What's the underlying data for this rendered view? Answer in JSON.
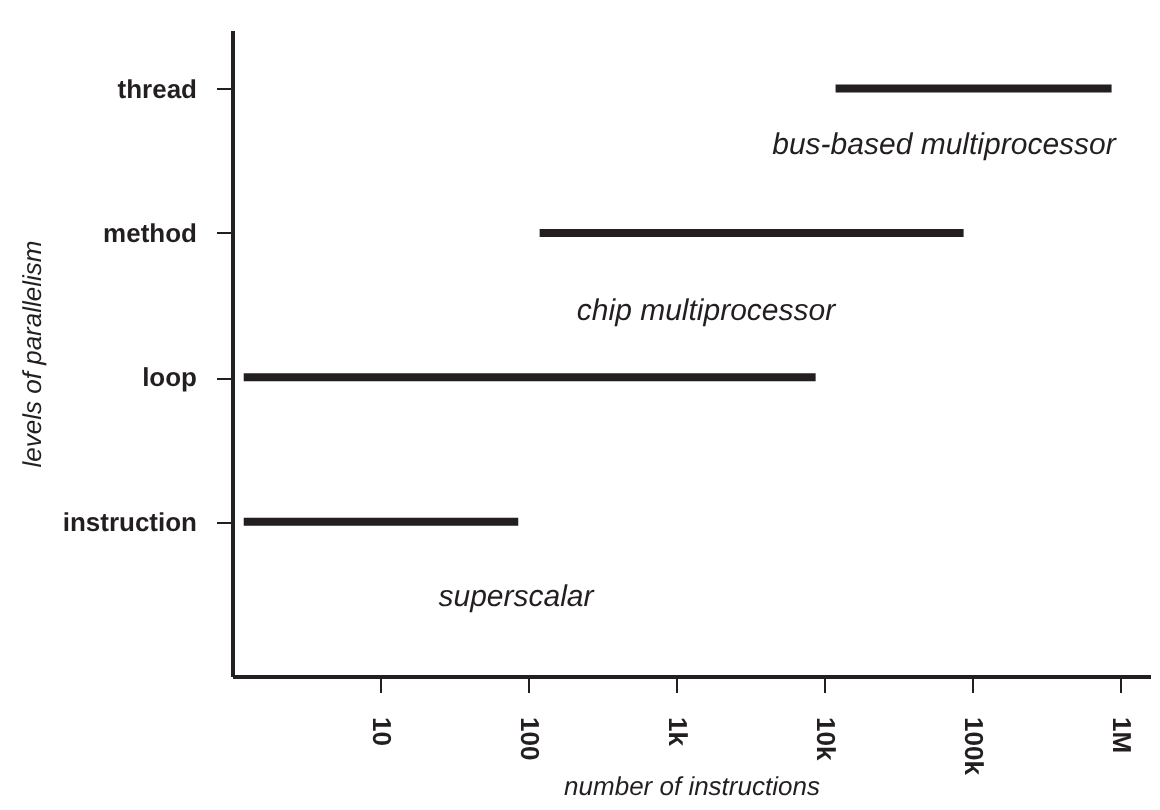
{
  "chart_data": {
    "type": "bar",
    "orientation": "horizontal",
    "log": "x",
    "categories": [
      "thread",
      "method",
      "loop",
      "instruction"
    ],
    "base": [
      12000,
      120,
      1.2,
      1.2
    ],
    "values": [
      868000,
      87880,
      8798.8,
      84.8
    ],
    "color": "#231f20",
    "xlim": [
      1,
      1600000
    ],
    "xticks": [
      10,
      100,
      {
        "value": 1000,
        "label": "1k"
      },
      {
        "value": 10000,
        "label": "10k"
      },
      {
        "value": 100000,
        "label": "100k"
      },
      {
        "value": 1000000,
        "label": "1M"
      }
    ],
    "xlabel": "number of instructions",
    "ylabel": "levels of parallelism",
    "annotations": [
      "bus-based multiprocessor",
      "chip multiprocessor",
      "superscalar"
    ],
    "grid": false
  }
}
